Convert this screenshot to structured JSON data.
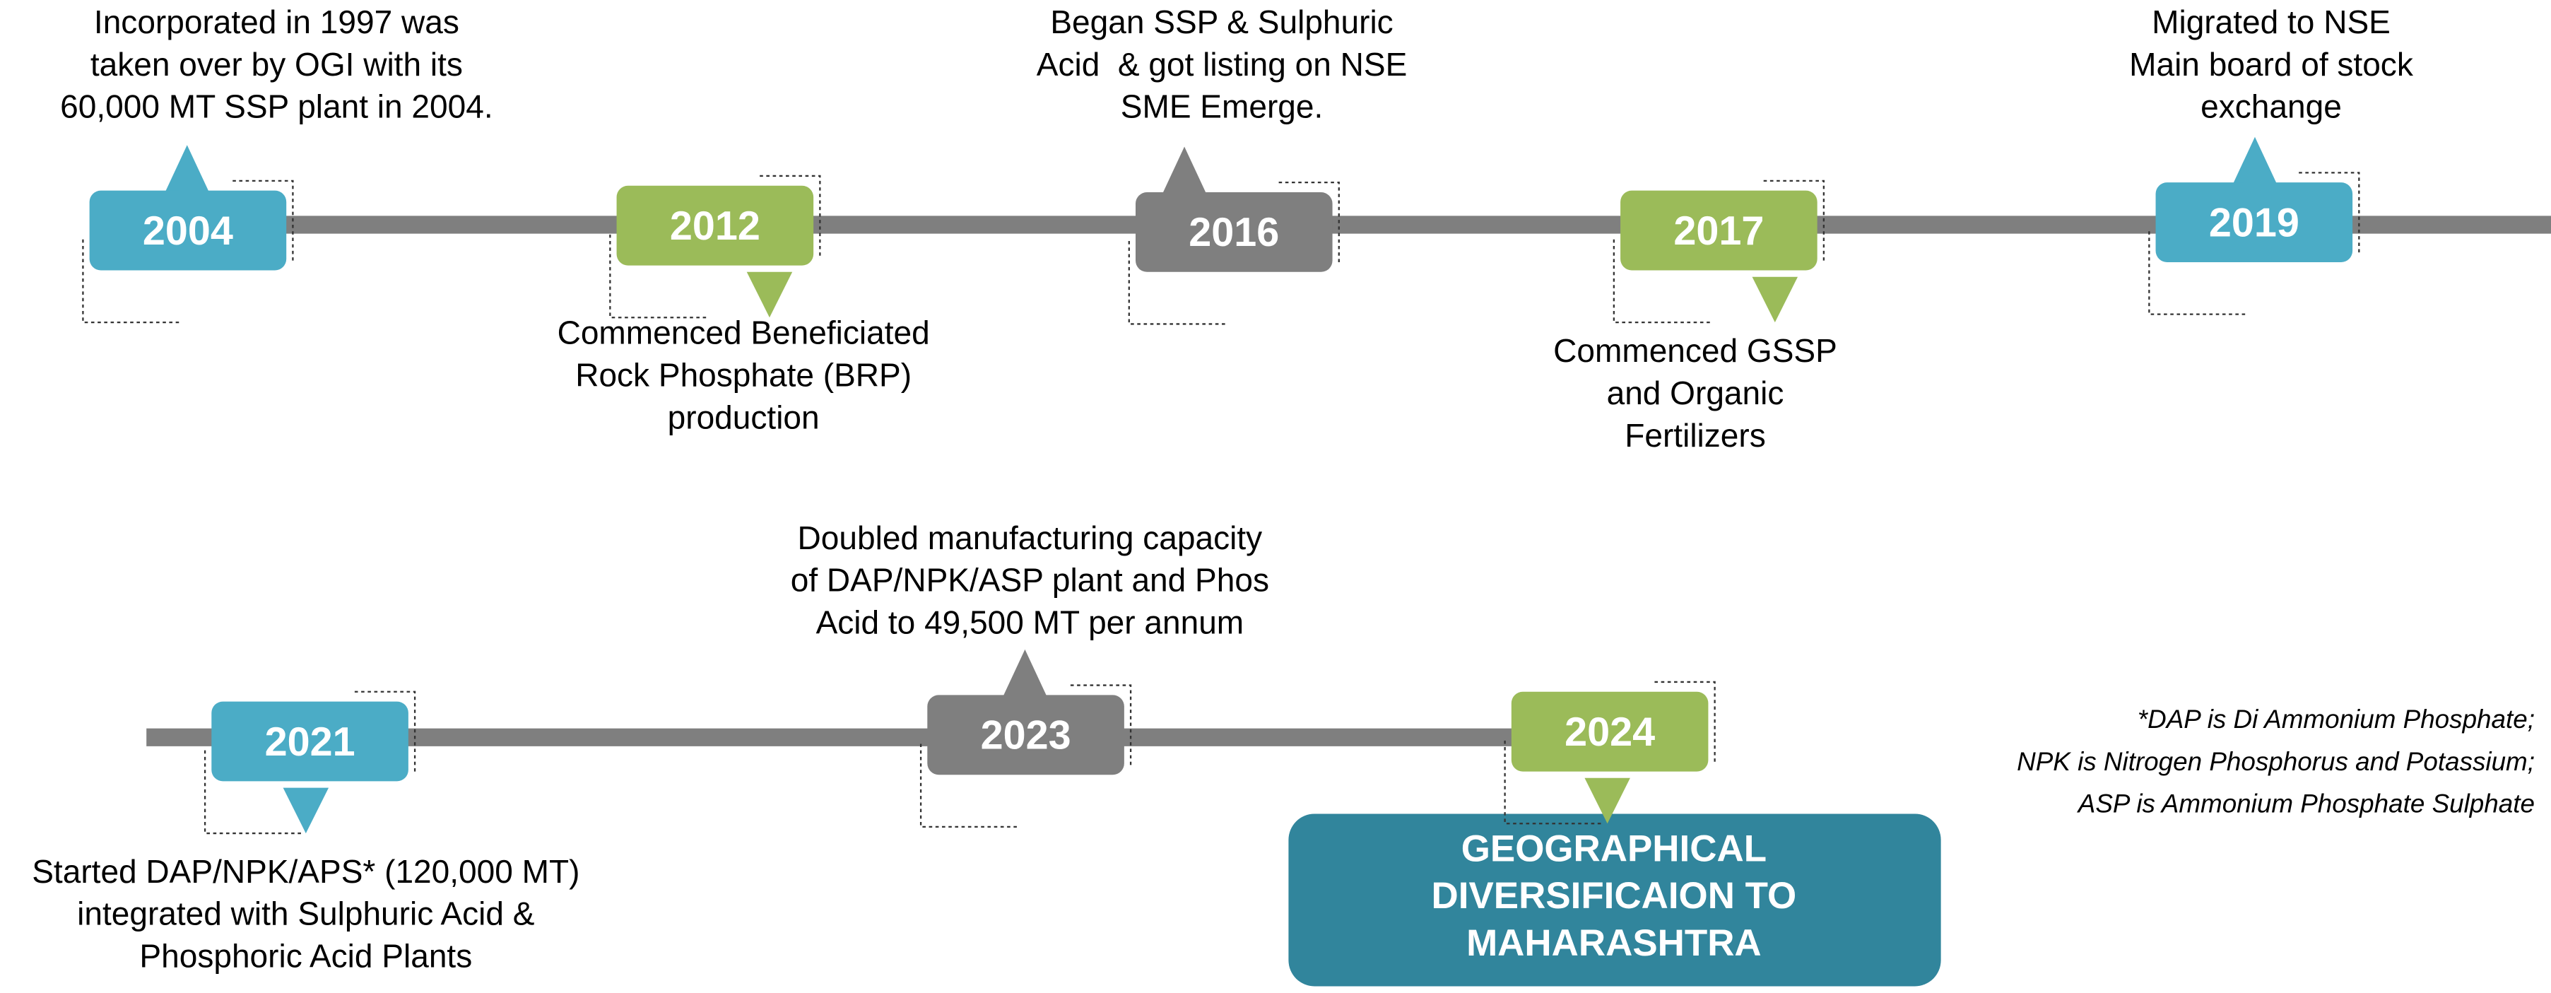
{
  "milestones": [
    {
      "year": "2004",
      "lines": [
        "Incorporated in 1997 was",
        "taken over by OGI with its",
        "60,000 MT SSP plant in 2004."
      ]
    },
    {
      "year": "2012",
      "lines": [
        "Commenced Beneficiated",
        "Rock Phosphate (BRP)",
        "production"
      ]
    },
    {
      "year": "2016",
      "lines": [
        "Began SSP & Sulphuric",
        "Acid  & got listing on NSE",
        "SME Emerge."
      ]
    },
    {
      "year": "2017",
      "lines": [
        "Commenced GSSP",
        "and Organic",
        "Fertilizers"
      ]
    },
    {
      "year": "2019",
      "lines": [
        "Migrated to NSE",
        "Main board of stock",
        "exchange"
      ]
    },
    {
      "year": "2021",
      "lines": [
        "Started DAP/NPK/APS* (120,000 MT)",
        "integrated with Sulphuric Acid &",
        "Phosphoric Acid Plants"
      ]
    },
    {
      "year": "2023",
      "lines": [
        "Doubled manufacturing capacity",
        "of DAP/NPK/ASP plant and Phos",
        "Acid to 49,500 MT per annum"
      ]
    },
    {
      "year": "2024",
      "lines": []
    }
  ],
  "highlight": {
    "lines": [
      "GEOGRAPHICAL",
      "DIVERSIFICAION TO",
      "MAHARASHTRA"
    ]
  },
  "note": {
    "lines": [
      "*DAP is Di Ammonium Phosphate;",
      "NPK is Nitrogen Phosphorus and Potassium;",
      "ASP is Ammonium Phosphate Sulphate"
    ]
  }
}
